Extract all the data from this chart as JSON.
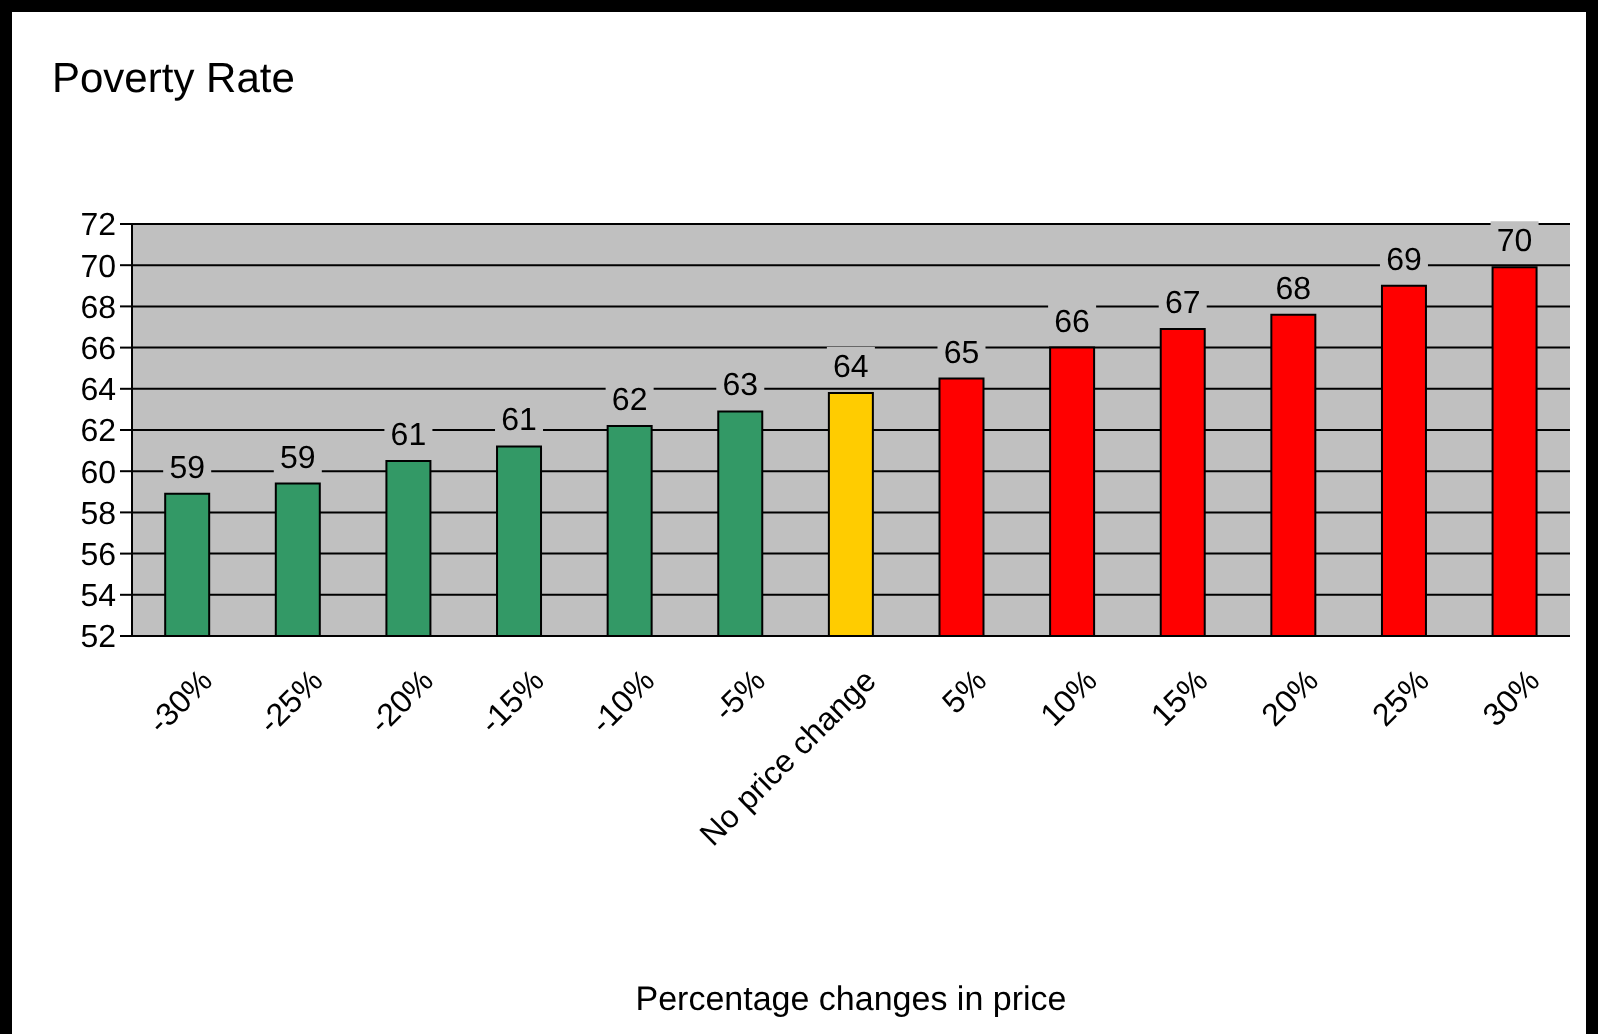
{
  "chart_data": {
    "type": "bar",
    "title": "Poverty Rate",
    "xlabel": "Percentage changes in price",
    "categories": [
      "-30%",
      "-25%",
      "-20%",
      "-15%",
      "-10%",
      "-5%",
      "No price change",
      "5%",
      "10%",
      "15%",
      "20%",
      "25%",
      "30%"
    ],
    "values": [
      58.9,
      59.4,
      60.5,
      61.2,
      62.2,
      62.9,
      63.8,
      64.5,
      66.0,
      66.9,
      67.6,
      69.0,
      69.9
    ],
    "colors": [
      "#339966",
      "#339966",
      "#339966",
      "#339966",
      "#339966",
      "#339966",
      "#ffcc00",
      "#ff0000",
      "#ff0000",
      "#ff0000",
      "#ff0000",
      "#ff0000",
      "#ff0000"
    ],
    "value_labels": [
      "59",
      "59",
      "61",
      "61",
      "62",
      "63",
      "64",
      "65",
      "66",
      "67",
      "68",
      "69",
      "70"
    ],
    "ylim": [
      52,
      72
    ],
    "yticks": [
      52,
      54,
      56,
      58,
      60,
      62,
      64,
      66,
      68,
      70,
      72
    ],
    "grid": "y"
  }
}
